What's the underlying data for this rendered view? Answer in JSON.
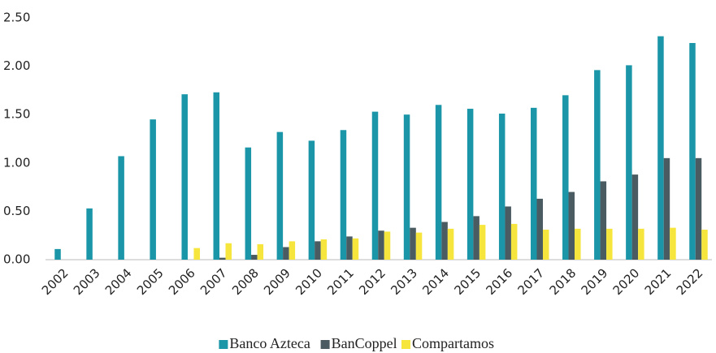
{
  "chart_data": {
    "type": "bar",
    "categories": [
      "2002",
      "2003",
      "2004",
      "2005",
      "2006",
      "2007",
      "2008",
      "2009",
      "2010",
      "2011",
      "2012",
      "2013",
      "2014",
      "2015",
      "2016",
      "2017",
      "2018",
      "2019",
      "2020",
      "2021",
      "2022"
    ],
    "series": [
      {
        "name": "Banco Azteca",
        "color": "#1a96a8",
        "values": [
          0.11,
          0.53,
          1.07,
          1.45,
          1.71,
          1.73,
          1.16,
          1.32,
          1.23,
          1.34,
          1.53,
          1.5,
          1.6,
          1.56,
          1.51,
          1.57,
          1.7,
          1.96,
          2.01,
          2.31,
          2.24
        ]
      },
      {
        "name": "BanCoppel",
        "color": "#4a5b61",
        "values": [
          null,
          null,
          null,
          null,
          null,
          0.02,
          0.05,
          0.13,
          0.19,
          0.24,
          0.3,
          0.33,
          0.39,
          0.45,
          0.55,
          0.63,
          0.7,
          0.81,
          0.88,
          1.05,
          1.05
        ]
      },
      {
        "name": "Compartamos",
        "color": "#f6e53c",
        "values": [
          null,
          null,
          null,
          null,
          0.12,
          0.17,
          0.16,
          0.19,
          0.21,
          0.22,
          0.29,
          0.28,
          0.32,
          0.36,
          0.37,
          0.31,
          0.32,
          0.32,
          0.32,
          0.33,
          0.31
        ]
      }
    ],
    "ylim": [
      0,
      2.5
    ],
    "yticks": [
      {
        "value": 0,
        "label": "0.00"
      },
      {
        "value": 0.5,
        "label": "0.50"
      },
      {
        "value": 1,
        "label": "1.00"
      },
      {
        "value": 1.5,
        "label": "1.50"
      },
      {
        "value": 2,
        "label": "2.00"
      },
      {
        "value": 2.5,
        "label": "2.50"
      }
    ],
    "grid": false,
    "legend": "bottom"
  }
}
